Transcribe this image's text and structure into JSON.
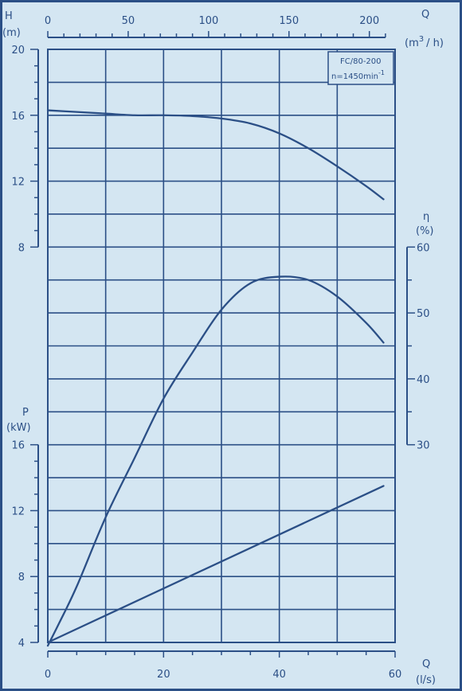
{
  "chart_data": {
    "type": "line",
    "title": "",
    "model_label": "FC/80-200",
    "speed_label": "n=1450min",
    "speed_exp": "-1",
    "x_top": {
      "label_letter": "Q",
      "unit_prefix": "(m",
      "unit_exp": "3",
      "unit_suffix": "/ h)",
      "ticks": [
        "0",
        "50",
        "100",
        "150",
        "200"
      ],
      "range": [
        0,
        216
      ]
    },
    "x_bottom": {
      "label_letter": "Q",
      "unit": "(l/s)",
      "ticks": [
        "0",
        "20",
        "40",
        "60"
      ],
      "range": [
        0,
        60
      ]
    },
    "head_axis": {
      "label_letter": "H",
      "unit": "(m)",
      "ticks": [
        "8",
        "12",
        "16",
        "20"
      ],
      "range": [
        8,
        20
      ]
    },
    "eff_axis": {
      "label_letter": "η",
      "unit": "(%)",
      "ticks": [
        "30",
        "40",
        "50",
        "60"
      ],
      "range": [
        30,
        60
      ]
    },
    "power_axis": {
      "label_letter": "P",
      "unit": "(kW)",
      "ticks": [
        "4",
        "8",
        "12",
        "16"
      ],
      "range": [
        4,
        16
      ]
    },
    "series": [
      {
        "key": "head",
        "x": [
          0,
          5,
          10,
          15,
          20,
          25,
          30,
          35,
          40,
          45,
          50,
          55,
          58
        ],
        "y": [
          16.3,
          16.2,
          16.1,
          16.0,
          16.0,
          15.95,
          15.8,
          15.5,
          14.9,
          14.0,
          12.9,
          11.7,
          10.9
        ]
      },
      {
        "key": "efficiency",
        "x": [
          0,
          2,
          5,
          10,
          15,
          20,
          25,
          30,
          35,
          40,
          45,
          50,
          55,
          58
        ],
        "y": [
          -0.5,
          3,
          8.5,
          19,
          28,
          37,
          44,
          50.5,
          54.5,
          55.5,
          55.0,
          52.5,
          48.5,
          45.5
        ]
      },
      {
        "key": "power",
        "x": [
          0,
          58
        ],
        "y": [
          4.0,
          13.5
        ]
      }
    ],
    "colors": {
      "background": "#d4e6f2",
      "lines": "#2b4f86"
    },
    "grid": true
  }
}
